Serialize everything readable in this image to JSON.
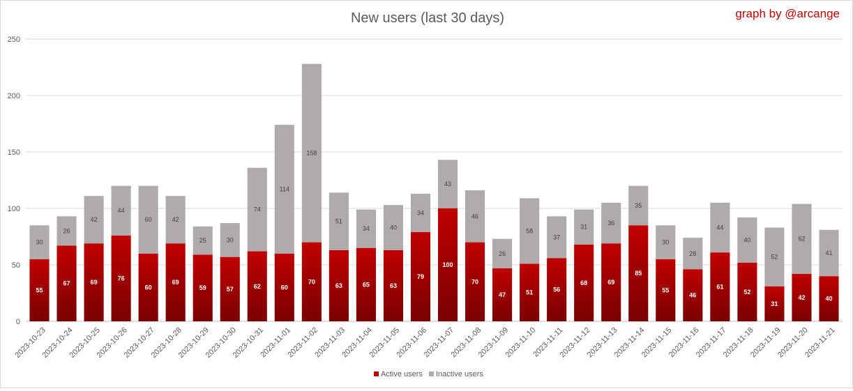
{
  "chart_data": {
    "type": "bar",
    "stacked": true,
    "title": "New users (last 30 days)",
    "credit": "graph by @arcange",
    "ylim": [
      0,
      250
    ],
    "yticks": [
      0,
      50,
      100,
      150,
      200,
      250
    ],
    "grid": true,
    "legend_position": "bottom",
    "categories": [
      "2023-10-23",
      "2023-10-24",
      "2023-10-25",
      "2023-10-26",
      "2023-10-27",
      "2023-10-28",
      "2023-10-29",
      "2023-10-30",
      "2023-10-31",
      "2023-11-01",
      "2023-11-02",
      "2023-11-03",
      "2023-11-04",
      "2023-11-05",
      "2023-11-06",
      "2023-11-07",
      "2023-11-08",
      "2023-11-09",
      "2023-11-10",
      "2023-11-11",
      "2023-11-12",
      "2023-11-13",
      "2023-11-14",
      "2023-11-15",
      "2023-11-16",
      "2023-11-17",
      "2023-11-18",
      "2023-11-19",
      "2023-11-20",
      "2023-11-21"
    ],
    "series": [
      {
        "name": "Active users",
        "color": "#c00000",
        "values": [
          55,
          67,
          69,
          76,
          60,
          69,
          59,
          57,
          62,
          60,
          70,
          63,
          65,
          63,
          79,
          100,
          70,
          47,
          51,
          56,
          68,
          69,
          85,
          55,
          46,
          61,
          52,
          31,
          42,
          40
        ]
      },
      {
        "name": "Inactive users",
        "color": "#afabab",
        "values": [
          30,
          26,
          42,
          44,
          60,
          42,
          25,
          30,
          74,
          114,
          158,
          51,
          34,
          40,
          34,
          43,
          46,
          26,
          58,
          37,
          31,
          36,
          35,
          30,
          28,
          44,
          40,
          52,
          62,
          41
        ]
      }
    ],
    "colors": {
      "credit": "#c00000",
      "active_dark": "#7a0000",
      "grid": "#d9d9d9",
      "axis": "#bfbfbf"
    }
  }
}
